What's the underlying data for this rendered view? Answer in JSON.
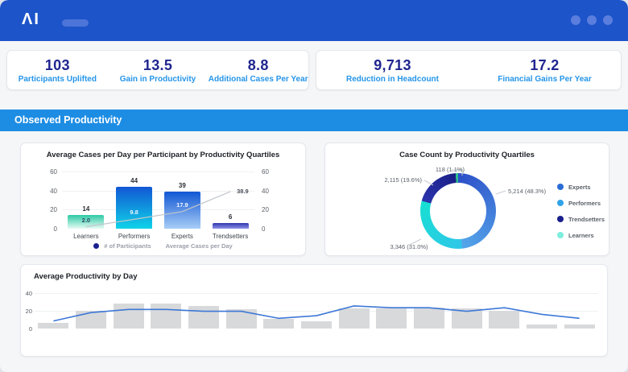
{
  "header": {
    "logo": "ΛI"
  },
  "kpi_groups": [
    {
      "items": [
        {
          "value": "103",
          "label": "Participants Uplifted"
        },
        {
          "value": "13.5",
          "label": "Gain in Productivity"
        },
        {
          "value": "8.8",
          "label": "Additional Cases Per Year"
        }
      ]
    },
    {
      "items": [
        {
          "value": "9,713",
          "label": "Reduction in Headcount"
        },
        {
          "value": "17.2",
          "label": "Financial Gains Per Year"
        }
      ]
    }
  ],
  "section_banner": {
    "title": "Observed Productivity"
  },
  "chart_data": [
    {
      "type": "bar",
      "title": "Average Cases per Day per Participant by Productivity Quartiles",
      "categories": [
        "Learners",
        "Performers",
        "Experts",
        "Trendsetters"
      ],
      "series": [
        {
          "name": "# of Participants",
          "type": "bar",
          "values": [
            14,
            44,
            39,
            6
          ],
          "bar_gradients": [
            [
              "#2ec9a4",
              "#e7fbf4"
            ],
            [
              "#1157d4",
              "#0fd3e8"
            ],
            [
              "#1157d4",
              "#a8cdf6"
            ],
            [
              "#2f37ab",
              "#8d93e8"
            ]
          ],
          "legend_dot_color": "#1b2090"
        },
        {
          "name": "Average Cases per Day",
          "type": "line",
          "values": [
            2.0,
            9.8,
            17.9,
            38.9
          ],
          "point_labels": [
            "2.0",
            "9.8",
            "17.9",
            "38.9"
          ],
          "color": "#c2c6cc"
        }
      ],
      "ylim": [
        0,
        60
      ],
      "yticks": [
        0,
        20,
        40,
        60
      ],
      "legend_position": "bottom"
    },
    {
      "type": "donut",
      "title": "Case Count by Productivity Quartiles",
      "segments": [
        {
          "label": "Experts",
          "value": 5214,
          "pct": 48.3,
          "display": "5,214 (48.3%)",
          "color_start": "#2c4fc8",
          "color": "#55a6ea"
        },
        {
          "label": "Performers",
          "value": 3346,
          "pct": 31.0,
          "display": "3,346 (31.0%)",
          "color_start": "#2fc7e8",
          "color": "#16dfd2"
        },
        {
          "label": "Trendsetters",
          "value": 2115,
          "pct": 19.6,
          "display": "2,115 (19.6%)",
          "color_start": "#2b34ac",
          "color": "#1a1f86"
        },
        {
          "label": "Learners",
          "value": 118,
          "pct": 1.1,
          "display": "118 (1.1%)",
          "color_start": "#2ebd8e",
          "color": "#2ebd8e"
        }
      ],
      "legend": [
        {
          "label": "Experts",
          "color": "#2a6bd4"
        },
        {
          "label": "Performers",
          "color": "#2fa3e8"
        },
        {
          "label": "Trendsetters",
          "color": "#1a1f8c"
        },
        {
          "label": "Learners",
          "color": "#7ceede"
        }
      ],
      "legend_position": "right"
    },
    {
      "type": "bar+line",
      "title": "Average Productivity by Day",
      "bar_series": {
        "name": "Average Productivity by Day",
        "values": [
          6.5,
          20,
          28,
          28,
          25.5,
          22,
          10.5,
          8,
          22.5,
          23,
          23.5,
          22.5,
          20,
          4.5,
          4.5
        ],
        "color": "#d8d9db"
      },
      "line_series": {
        "values": [
          8.5,
          18,
          21.5,
          21.5,
          19.5,
          19.5,
          11.5,
          14.5,
          25.5,
          23.5,
          23.5,
          19.5,
          23.5,
          16,
          11.5
        ],
        "color": "#3d78d6"
      },
      "ylim": [
        0,
        40
      ],
      "yticks": [
        0,
        20,
        40
      ],
      "grid": true
    }
  ]
}
